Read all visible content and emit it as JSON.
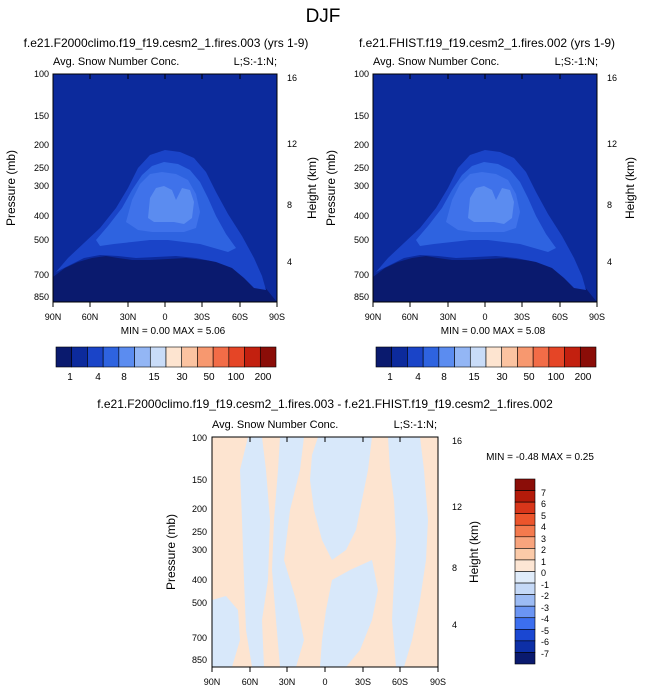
{
  "page_title": "DJF",
  "palette": [
    "#0a1a6e",
    "#0c2a9c",
    "#1a44c8",
    "#2e63e0",
    "#5b8cf0",
    "#93b6f5",
    "#c9dcf8",
    "#fde4d0",
    "#fbc3a1",
    "#f7986f",
    "#f26c47",
    "#e54526",
    "#c3200f",
    "#8b0d08"
  ],
  "diff_palette": [
    "#0a1a6e",
    "#0d2fa6",
    "#1a47d2",
    "#3c6ff0",
    "#6b95f3",
    "#9cbbf4",
    "#c5d9f7",
    "#e0ecfa",
    "#fde6d4",
    "#fbcaa8",
    "#f8a47d",
    "#f47a4e",
    "#ec552c",
    "#d8361a",
    "#b41b0a",
    "#8b0d08"
  ],
  "chart_data": [
    {
      "type": "heatmap",
      "title": "f.e21.F2000climo.f19_f19.cesm2_1.fires.003 (yrs 1-9)",
      "subtitle_left": "Avg. Snow Number Conc.",
      "subtitle_right": "L;S:-1:N;",
      "ylabel": "Pressure (mb)",
      "ylabel_right": "Height (km)",
      "x_ticks": [
        "90N",
        "60N",
        "30N",
        "0",
        "30S",
        "60S",
        "90S"
      ],
      "y_ticks": [
        "100",
        "150",
        "200",
        "250",
        "300",
        "400",
        "500",
        "700",
        "850"
      ],
      "y_ticks_right": [
        "16",
        "12",
        "8",
        "4"
      ],
      "stats": "MIN =  0.00  MAX =  5.06",
      "min": 0.0,
      "max": 5.06,
      "contour_levels": [
        1,
        2,
        4,
        6,
        8,
        10,
        15,
        20,
        30,
        40,
        50,
        70,
        100,
        150,
        200
      ],
      "colorbar_labels": [
        "1",
        "4",
        "8",
        "15",
        "30",
        "50",
        "100",
        "200"
      ]
    },
    {
      "type": "heatmap",
      "title": "f.e21.FHIST.f19_f19.cesm2_1.fires.002 (yrs 1-9)",
      "subtitle_left": "Avg. Snow Number Conc.",
      "subtitle_right": "L;S:-1:N;",
      "ylabel": "Pressure (mb)",
      "ylabel_right": "Height (km)",
      "x_ticks": [
        "90N",
        "60N",
        "30N",
        "0",
        "30S",
        "60S",
        "90S"
      ],
      "y_ticks": [
        "100",
        "150",
        "200",
        "250",
        "300",
        "400",
        "500",
        "700",
        "850"
      ],
      "y_ticks_right": [
        "16",
        "12",
        "8",
        "4"
      ],
      "stats": "MIN =  0.00  MAX =  5.08",
      "min": 0.0,
      "max": 5.08
    },
    {
      "type": "heatmap",
      "title": "f.e21.F2000climo.f19_f19.cesm2_1.fires.003 - f.e21.FHIST.f19_f19.cesm2_1.fires.002",
      "subtitle_left": "Avg. Snow Number Conc.",
      "subtitle_right": "L;S:-1:N;",
      "ylabel": "Pressure (mb)",
      "ylabel_right": "Height (km)",
      "x_ticks": [
        "90N",
        "60N",
        "30N",
        "0",
        "30S",
        "60S",
        "90S"
      ],
      "y_ticks": [
        "100",
        "150",
        "200",
        "250",
        "300",
        "400",
        "500",
        "700",
        "850"
      ],
      "y_ticks_right": [
        "16",
        "12",
        "8",
        "4"
      ],
      "stats": "MIN =  -0.48  MAX =  0.25",
      "min": -0.48,
      "max": 0.25,
      "colorbar_labels": [
        "7",
        "6",
        "5",
        "4",
        "3",
        "2",
        "1",
        "0",
        "-1",
        "-2",
        "-3",
        "-4",
        "-5",
        "-6",
        "-7"
      ]
    }
  ]
}
